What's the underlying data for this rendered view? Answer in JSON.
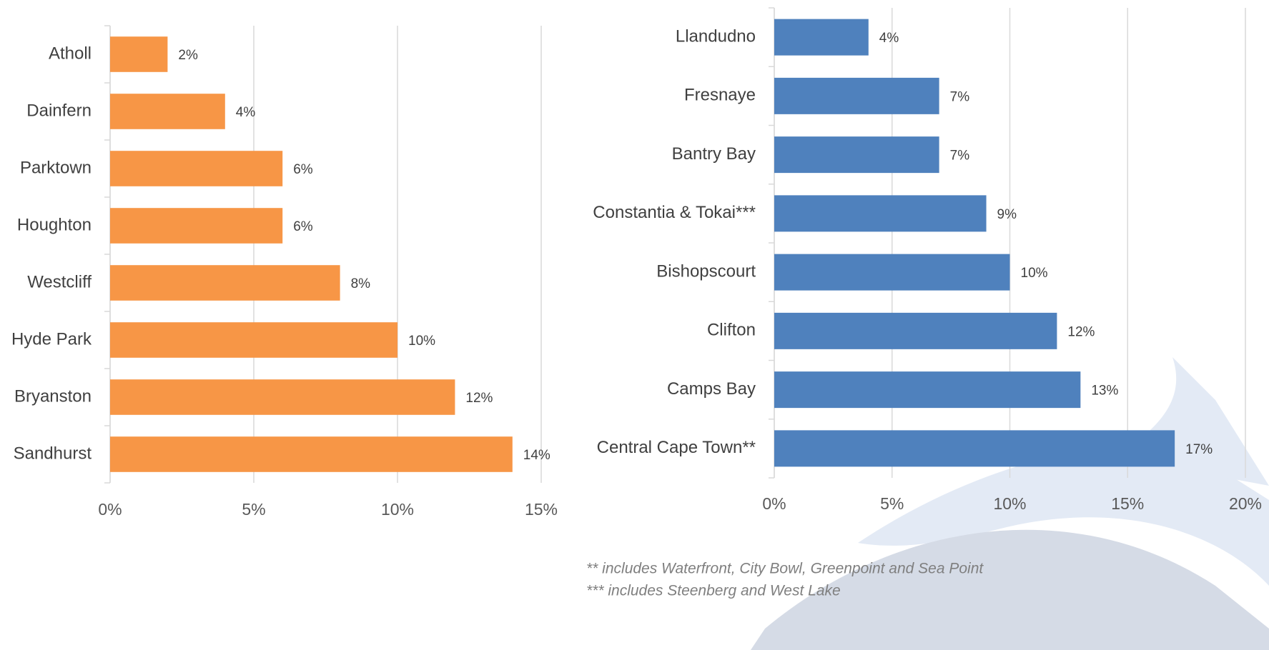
{
  "chart_data": [
    {
      "type": "bar",
      "orientation": "horizontal",
      "categories": [
        "Atholl",
        "Dainfern",
        "Parktown",
        "Houghton",
        "Westcliff",
        "Hyde Park",
        "Bryanston",
        "Sandhurst"
      ],
      "values": [
        2,
        4,
        6,
        6,
        8,
        10,
        12,
        14
      ],
      "value_labels": [
        "2%",
        "4%",
        "6%",
        "6%",
        "8%",
        "10%",
        "12%",
        "14%"
      ],
      "color": "#f79646",
      "xlim": [
        0,
        15
      ],
      "xticks": [
        {
          "value": 0,
          "label": "0%"
        },
        {
          "value": 5,
          "label": "5%"
        },
        {
          "value": 10,
          "label": "10%"
        },
        {
          "value": 15,
          "label": "15%"
        }
      ],
      "grid": true
    },
    {
      "type": "bar",
      "orientation": "horizontal",
      "categories": [
        "Llandudno",
        "Fresnaye",
        "Bantry Bay",
        "Constantia & Tokai***",
        "Bishopscourt",
        "Clifton",
        "Camps Bay",
        "Central Cape Town**"
      ],
      "values": [
        4,
        7,
        7,
        9,
        10,
        12,
        13,
        17
      ],
      "value_labels": [
        "4%",
        "7%",
        "7%",
        "9%",
        "10%",
        "12%",
        "13%",
        "17%"
      ],
      "color": "#4f81bd",
      "xlim": [
        0,
        20
      ],
      "xticks": [
        {
          "value": 0,
          "label": "0%"
        },
        {
          "value": 5,
          "label": "5%"
        },
        {
          "value": 10,
          "label": "10%"
        },
        {
          "value": 15,
          "label": "15%"
        },
        {
          "value": 20,
          "label": "20%"
        }
      ],
      "grid": true,
      "notes": [
        "** includes Waterfront, City Bowl, Greenpoint and Sea Point",
        "*** includes Steenberg and West Lake"
      ]
    }
  ]
}
